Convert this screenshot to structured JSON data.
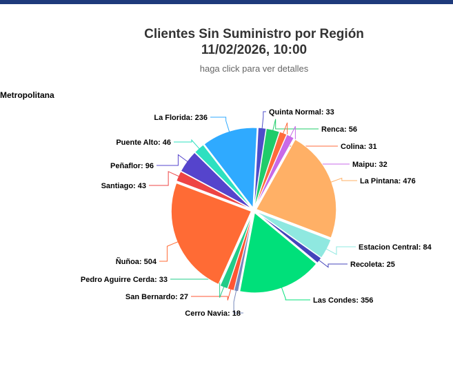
{
  "header": {
    "title_line1": "Clientes Sin Suministro por Región",
    "title_line2": "11/02/2026, 10:00",
    "subtitle": "haga click para ver detalles"
  },
  "chart_data": {
    "type": "pie",
    "title": "Metropolitana",
    "start_angle_deg": 3,
    "slices": [
      {
        "label": "Quinta Normal",
        "value": 33,
        "color": "#4d4dc9"
      },
      {
        "label": "Renca",
        "value": 56,
        "color": "#1fcc6a"
      },
      {
        "label": "Colina",
        "value": 31,
        "color": "#ff6b3b"
      },
      {
        "label": "Maipu",
        "value": 32,
        "color": "#c86ae8"
      },
      {
        "label": "La Pintana",
        "value": 476,
        "color": "#ffb066"
      },
      {
        "label": "Estacion Central",
        "value": 84,
        "color": "#8fe8e0"
      },
      {
        "label": "Recoleta",
        "value": 25,
        "color": "#4444bb"
      },
      {
        "label": "Las Condes",
        "value": 356,
        "color": "#00e07a"
      },
      {
        "label": "Cerro Navia",
        "value": 18,
        "color": "#7788bb"
      },
      {
        "label": "San Bernardo",
        "value": 27,
        "color": "#ff5533"
      },
      {
        "label": "Pedro Aguirre Cerda",
        "value": 33,
        "color": "#22cc88"
      },
      {
        "label": "Ñuñoa",
        "value": 504,
        "color": "#ff6b35"
      },
      {
        "label": "Santiago",
        "value": 43,
        "color": "#ee4444"
      },
      {
        "label": "Peñaflor",
        "value": 96,
        "color": "#5544cc"
      },
      {
        "label": "Puente Alto",
        "value": 46,
        "color": "#2ee0c0"
      },
      {
        "label": "La Florida",
        "value": 236,
        "color": "#2faaff"
      }
    ]
  }
}
